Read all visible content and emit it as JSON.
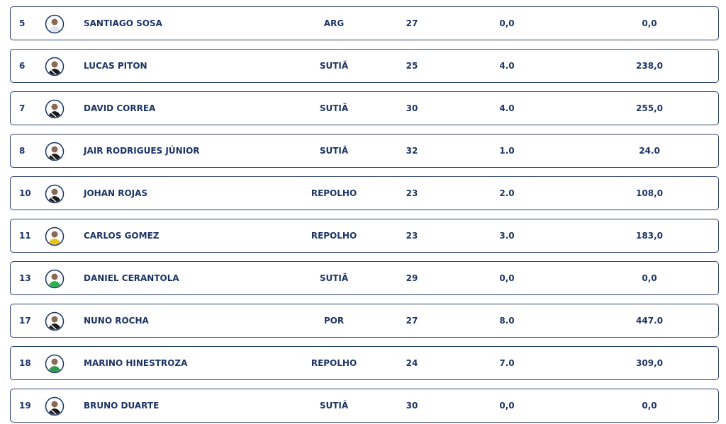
{
  "table": {
    "rows": [
      [
        5,
        "SANTIAGO SOSA",
        "ARG",
        27,
        "0,0",
        "0,0"
      ],
      [
        6,
        "LUCAS PITON",
        "SUTIÃ",
        25,
        "4.0",
        "238,0"
      ],
      [
        7,
        "DAVID CORREA",
        "SUTIÃ",
        30,
        "4.0",
        "255,0"
      ],
      [
        8,
        "JAIR RODRIGUES JÚNIOR",
        "SUTIÃ",
        32,
        "1.0",
        "24.0"
      ],
      [
        10,
        "JOHAN ROJAS",
        "REPOLHO",
        23,
        "2.0",
        "108,0"
      ],
      [
        11,
        "CARLOS GOMEZ",
        "REPOLHO",
        23,
        "3.0",
        "183,0"
      ],
      [
        13,
        "DANIEL CERANTOLA",
        "SUTIÃ",
        29,
        "0,0",
        "0,0"
      ],
      [
        17,
        "NUNO ROCHA",
        "POR",
        27,
        "8.0",
        "447.0"
      ],
      [
        18,
        "MARINO HINESTROZA",
        "REPOLHO",
        24,
        "7.0",
        "309,0"
      ],
      [
        19,
        "BRUNO DUARTE",
        "SUTIÃ",
        30,
        "0,0",
        "0,0"
      ]
    ]
  }
}
